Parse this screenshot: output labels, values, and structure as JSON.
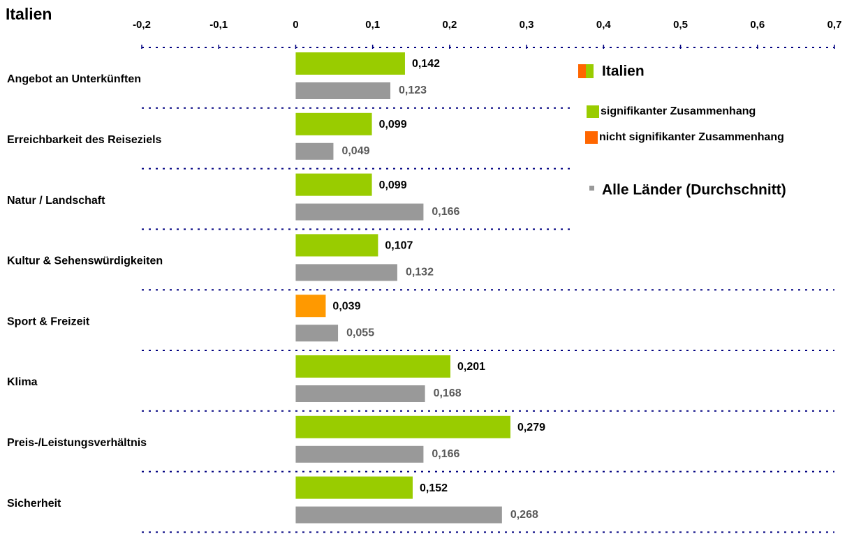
{
  "chart_data": {
    "type": "hbar",
    "title": "Italien",
    "categories": [
      "Angebot an Unterkünften",
      "Erreichbarkeit des Reiseziels",
      "Natur / Landschaft",
      "Kultur & Sehenswürdigkeiten",
      "Sport & Freizeit",
      "Klima",
      "Preis-/Leistungsverhältnis",
      "Sicherheit"
    ],
    "series": [
      {
        "name": "Italien",
        "color": "#99cc00",
        "colors": [
          "#99cc00",
          "#99cc00",
          "#99cc00",
          "#99cc00",
          "#ff9900",
          "#99cc00",
          "#99cc00",
          "#99cc00"
        ],
        "values": [
          0.142,
          0.099,
          0.099,
          0.107,
          0.039,
          0.201,
          0.279,
          0.152
        ],
        "value_labels": [
          "0,142",
          "0,099",
          "0,099",
          "0,107",
          "0,039",
          "0,201",
          "0,279",
          "0,152"
        ]
      },
      {
        "name": "Alle Länder (Durchschnitt)",
        "color": "#999999",
        "values": [
          0.123,
          0.049,
          0.166,
          0.132,
          0.055,
          0.168,
          0.166,
          0.268
        ],
        "value_labels": [
          "0,123",
          "0,049",
          "0,166",
          "0,132",
          "0,055",
          "0,168",
          "0,166",
          "0,268"
        ]
      }
    ],
    "significance_legend": [
      {
        "label": "signifikanter Zusammenhang",
        "color": "#99cc00"
      },
      {
        "label": "nicht signifikanter Zusammenhang",
        "color": "#ff6600"
      }
    ],
    "xlim": [
      -0.2,
      0.7
    ],
    "xticks": [
      {
        "value": -0.2,
        "label": "-0,2"
      },
      {
        "value": -0.1,
        "label": "-0,1"
      },
      0,
      {
        "value": 0.1,
        "label": "0,1"
      },
      {
        "value": 0.2,
        "label": "0,2"
      },
      {
        "value": 0.3,
        "label": "0,3"
      },
      {
        "value": 0.4,
        "label": "0,4"
      },
      {
        "value": 0.5,
        "label": "0,5"
      },
      {
        "value": 0.6,
        "label": "0,6"
      },
      {
        "value": 0.7,
        "label": "0,7"
      }
    ]
  }
}
